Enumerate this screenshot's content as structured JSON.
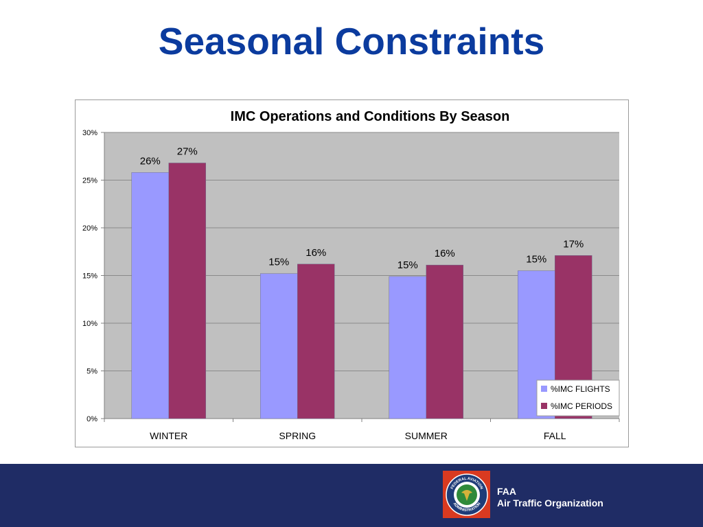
{
  "slide": {
    "title": "Seasonal Constraints"
  },
  "footer": {
    "line1": "FAA",
    "line2": "Air Traffic Organization",
    "logo_ring_top": "FEDERAL AVIATION",
    "logo_ring_bottom": "ADMINISTRATION"
  },
  "colors": {
    "title": "#0b3b9e",
    "footer_bg": "#1f2c65",
    "plot_bg": "#c0c0c0",
    "flights": "#9999ff",
    "periods": "#993366",
    "logo_red": "#d93a20"
  },
  "chart_data": {
    "type": "bar",
    "title": "IMC Operations and Conditions By Season",
    "categories": [
      "WINTER",
      "SPRING",
      "SUMMER",
      "FALL"
    ],
    "series": [
      {
        "name": "%IMC FLIGHTS",
        "values": [
          0.258,
          0.152,
          0.149,
          0.155
        ],
        "labels": [
          "26%",
          "15%",
          "15%",
          "15%"
        ]
      },
      {
        "name": "%IMC PERIODS",
        "values": [
          0.268,
          0.162,
          0.161,
          0.171
        ],
        "labels": [
          "27%",
          "16%",
          "16%",
          "17%"
        ]
      }
    ],
    "ylim": [
      0,
      0.3
    ],
    "yticks": [
      "0%",
      "5%",
      "10%",
      "15%",
      "20%",
      "25%",
      "30%"
    ],
    "grid": true,
    "legend": "bottom-right"
  }
}
